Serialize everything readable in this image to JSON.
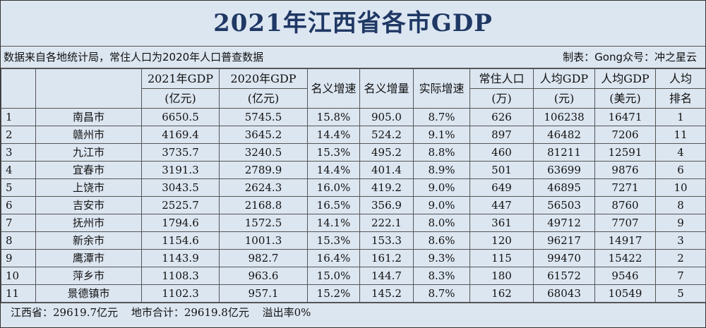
{
  "title": "2021年江西省各市GDP",
  "source_note": "数据来自各地统计局，常住人口为2020年人口普查数据",
  "credit": "制表：Gong众号：冲之星云",
  "headers": {
    "gdp2021": [
      "2021年GDP",
      "(亿元)"
    ],
    "gdp2020": [
      "2020年GDP",
      "(亿元)"
    ],
    "nominal_growth": "名义增速",
    "nominal_increase": "名义增量",
    "real_growth": "实际增速",
    "population": [
      "常住人口",
      "(万)"
    ],
    "per_capita_cny": [
      "人均GDP",
      "(元)"
    ],
    "per_capita_usd": [
      "人均GDP",
      "(美元)"
    ],
    "rank": [
      "人均",
      "排名"
    ]
  },
  "rows": [
    {
      "no": "1",
      "city": "南昌市",
      "gdp2021": "6650.5",
      "gdp2020": "5745.5",
      "nominal_growth": "15.8%",
      "nominal_increase": "905.0",
      "real_growth": "8.7%",
      "population": "626",
      "per_capita_cny": "106238",
      "per_capita_usd": "16471",
      "rank": "1"
    },
    {
      "no": "2",
      "city": "赣州市",
      "gdp2021": "4169.4",
      "gdp2020": "3645.2",
      "nominal_growth": "14.4%",
      "nominal_increase": "524.2",
      "real_growth": "9.1%",
      "population": "897",
      "per_capita_cny": "46482",
      "per_capita_usd": "7206",
      "rank": "11"
    },
    {
      "no": "3",
      "city": "九江市",
      "gdp2021": "3735.7",
      "gdp2020": "3240.5",
      "nominal_growth": "15.3%",
      "nominal_increase": "495.2",
      "real_growth": "8.8%",
      "population": "460",
      "per_capita_cny": "81211",
      "per_capita_usd": "12591",
      "rank": "4"
    },
    {
      "no": "4",
      "city": "宜春市",
      "gdp2021": "3191.3",
      "gdp2020": "2789.9",
      "nominal_growth": "14.4%",
      "nominal_increase": "401.4",
      "real_growth": "8.9%",
      "population": "501",
      "per_capita_cny": "63699",
      "per_capita_usd": "9876",
      "rank": "6"
    },
    {
      "no": "5",
      "city": "上饶市",
      "gdp2021": "3043.5",
      "gdp2020": "2624.3",
      "nominal_growth": "16.0%",
      "nominal_increase": "419.2",
      "real_growth": "9.0%",
      "population": "649",
      "per_capita_cny": "46895",
      "per_capita_usd": "7271",
      "rank": "10"
    },
    {
      "no": "6",
      "city": "吉安市",
      "gdp2021": "2525.7",
      "gdp2020": "2168.8",
      "nominal_growth": "16.5%",
      "nominal_increase": "356.9",
      "real_growth": "9.0%",
      "population": "447",
      "per_capita_cny": "56503",
      "per_capita_usd": "8760",
      "rank": "8"
    },
    {
      "no": "7",
      "city": "抚州市",
      "gdp2021": "1794.6",
      "gdp2020": "1572.5",
      "nominal_growth": "14.1%",
      "nominal_increase": "222.1",
      "real_growth": "8.0%",
      "population": "361",
      "per_capita_cny": "49712",
      "per_capita_usd": "7707",
      "rank": "9"
    },
    {
      "no": "8",
      "city": "新余市",
      "gdp2021": "1154.6",
      "gdp2020": "1001.3",
      "nominal_growth": "15.3%",
      "nominal_increase": "153.3",
      "real_growth": "8.6%",
      "population": "120",
      "per_capita_cny": "96217",
      "per_capita_usd": "14917",
      "rank": "3"
    },
    {
      "no": "9",
      "city": "鹰潭市",
      "gdp2021": "1143.9",
      "gdp2020": "982.7",
      "nominal_growth": "16.4%",
      "nominal_increase": "161.2",
      "real_growth": "9.3%",
      "population": "115",
      "per_capita_cny": "99470",
      "per_capita_usd": "15422",
      "rank": "2"
    },
    {
      "no": "10",
      "city": "萍乡市",
      "gdp2021": "1108.3",
      "gdp2020": "963.6",
      "nominal_growth": "15.0%",
      "nominal_increase": "144.7",
      "real_growth": "8.3%",
      "population": "180",
      "per_capita_cny": "61572",
      "per_capita_usd": "9546",
      "rank": "7"
    },
    {
      "no": "11",
      "city": "景德镇市",
      "gdp2021": "1102.3",
      "gdp2020": "957.1",
      "nominal_growth": "15.2%",
      "nominal_increase": "145.2",
      "real_growth": "8.7%",
      "population": "162",
      "per_capita_cny": "68043",
      "per_capita_usd": "10549",
      "rank": "5"
    }
  ],
  "footer": {
    "province_total": "江西省：29619.7亿元",
    "city_sum": "地市合计：29619.8亿元",
    "overflow": "溢出率0%"
  }
}
